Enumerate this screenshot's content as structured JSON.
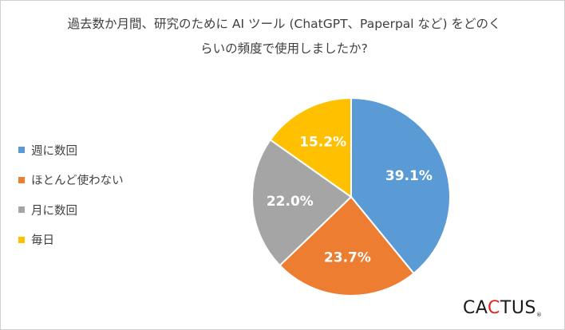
{
  "chart_data": {
    "type": "pie",
    "title": "過去数か月間、研究のために AI ツール (ChatGPT、Paperpal など) をどのくらいの頻度で使用しましたか?",
    "title_lines": [
      "過去数か月間、研究のために AI ツール (ChatGPT、Paperpal など) をどのく",
      "らいの頻度で使用しましたか?"
    ],
    "categories": [
      "週に数回",
      "ほとんど使わない",
      "月に数回",
      "毎日"
    ],
    "values": [
      39.1,
      23.7,
      22.0,
      15.2
    ],
    "labels": [
      "39.1%",
      "23.7%",
      "22.0%",
      "15.2%"
    ],
    "colors": [
      "#5b9bd5",
      "#ed7d31",
      "#a5a5a5",
      "#ffc000"
    ],
    "start": "12 o'clock",
    "direction": "clockwise",
    "legend_position": "left"
  },
  "logo": {
    "text_before": "CA",
    "accent": "C",
    "text_after": "TUS",
    "reg": "®",
    "accent_color": "#e3231b"
  }
}
